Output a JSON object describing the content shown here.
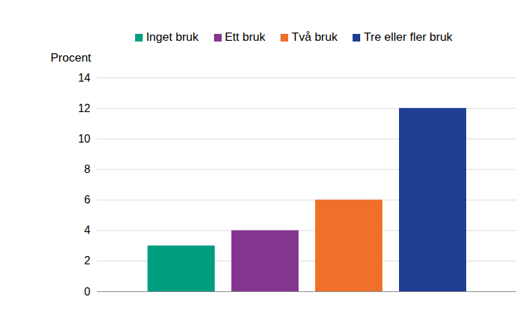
{
  "chart_data": {
    "type": "bar",
    "categories": [
      "Inget bruk",
      "Ett bruk",
      "Två bruk",
      "Tre eller fler bruk"
    ],
    "values": [
      3,
      4,
      6,
      12
    ],
    "colors": [
      "#009e80",
      "#84358f",
      "#ee7029",
      "#1f3d92"
    ],
    "y_label": "Procent",
    "ylim": [
      0,
      14
    ],
    "yticks": [
      0,
      2,
      4,
      6,
      8,
      10,
      12,
      14
    ],
    "grid": true,
    "legend": "top",
    "tick_labels": "y"
  }
}
